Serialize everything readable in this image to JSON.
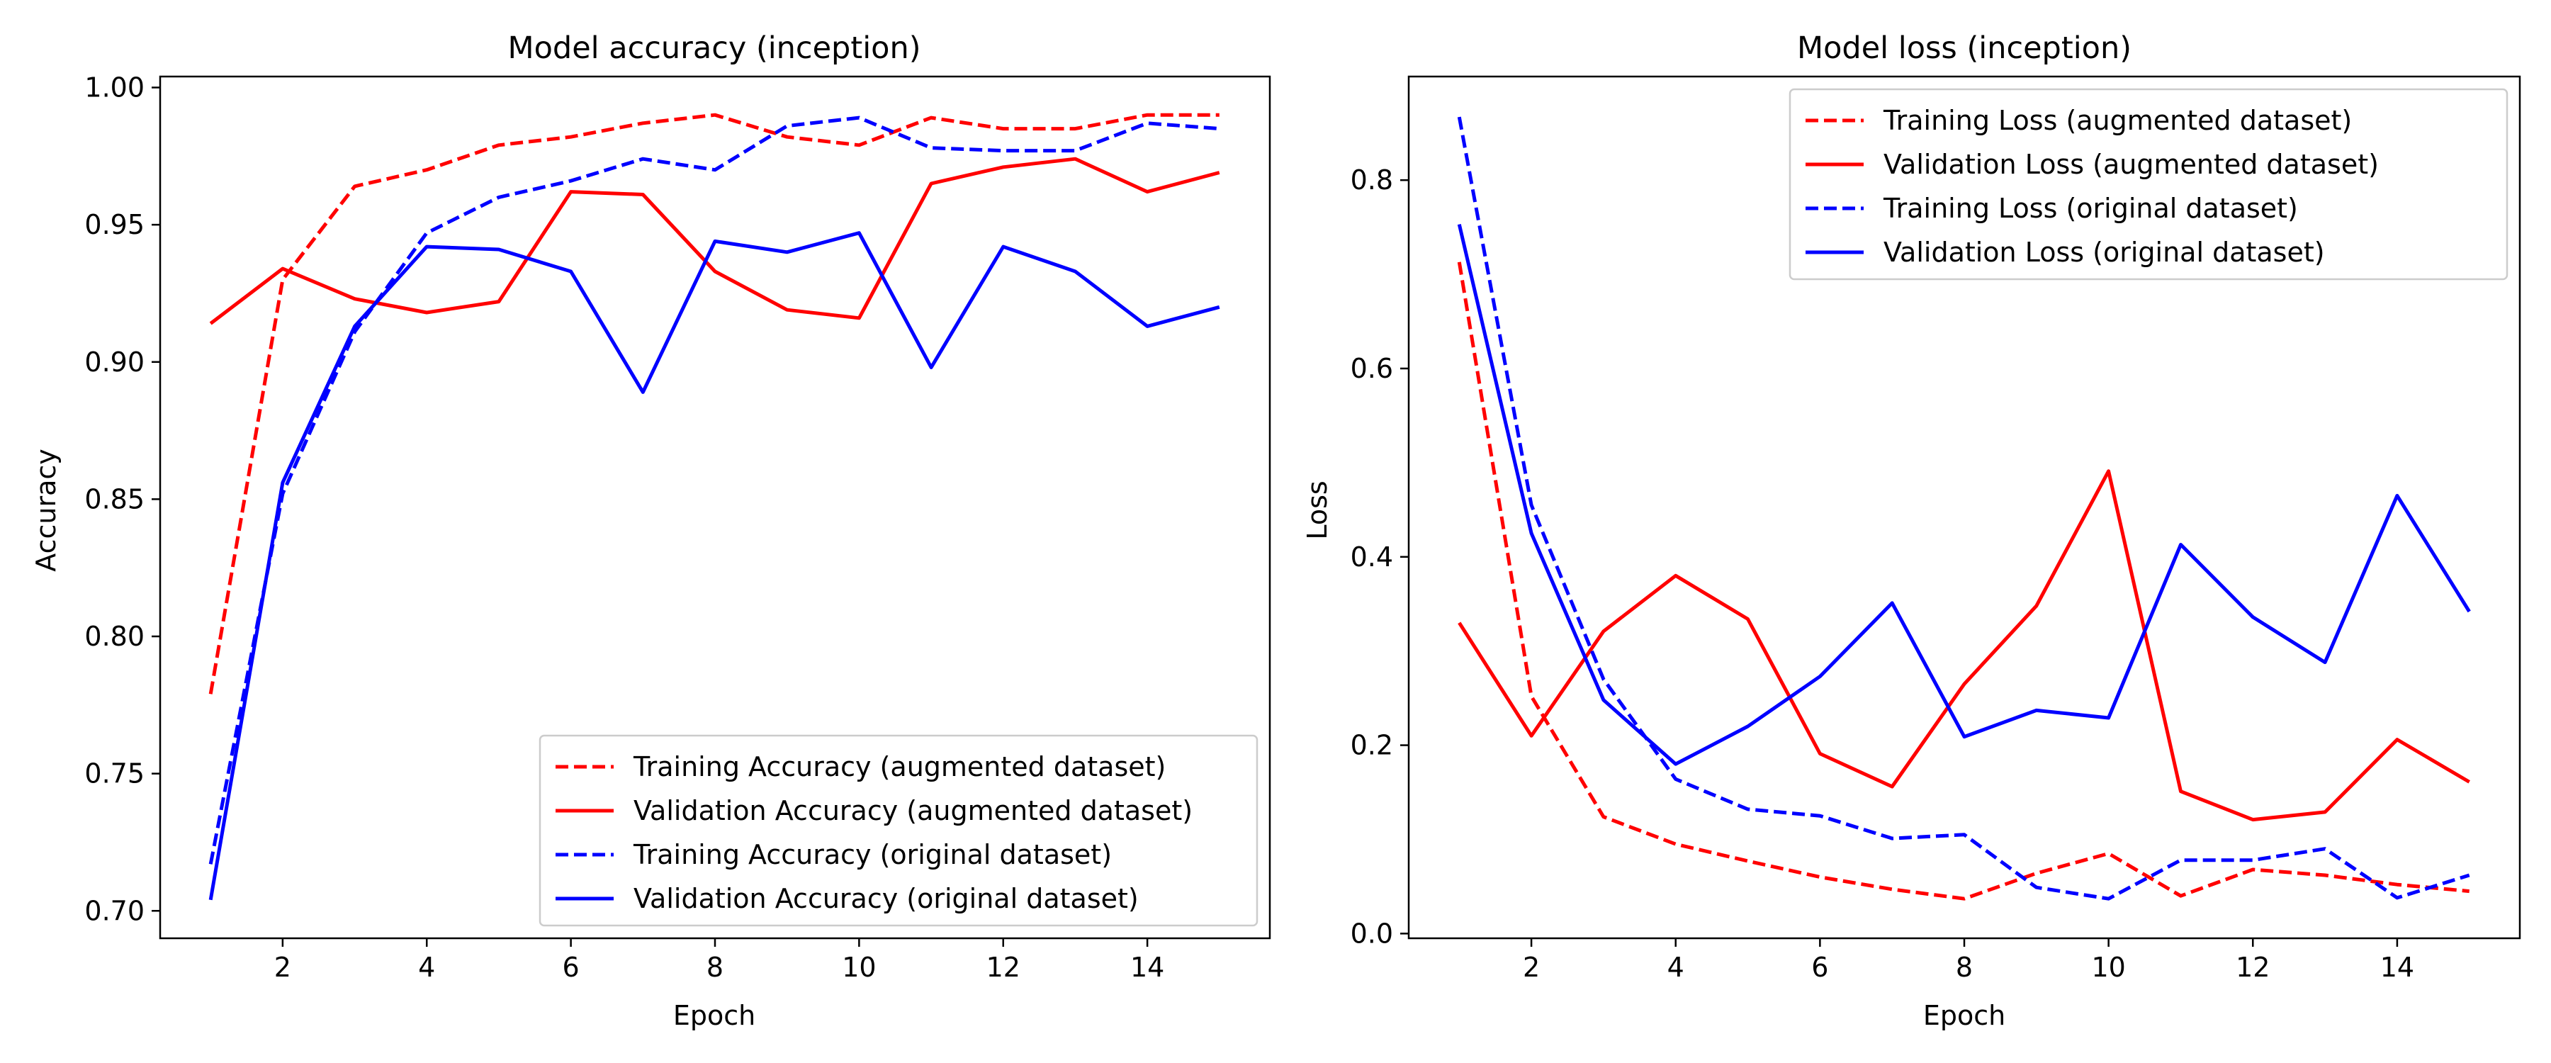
{
  "chart_data": [
    {
      "type": "line",
      "title": "Model accuracy (inception)",
      "xlabel": "Epoch",
      "ylabel": "Accuracy",
      "x": [
        1,
        2,
        3,
        4,
        5,
        6,
        7,
        8,
        9,
        10,
        11,
        12,
        13,
        14,
        15
      ],
      "xlim": [
        0.3,
        15.7
      ],
      "ylim": [
        0.69,
        1.004
      ],
      "xticks": [
        2,
        4,
        6,
        8,
        10,
        12,
        14
      ],
      "xtick_labels": [
        "2",
        "4",
        "6",
        "8",
        "10",
        "12",
        "14"
      ],
      "yticks": [
        0.7,
        0.75,
        0.8,
        0.85,
        0.9,
        0.95,
        1.0
      ],
      "ytick_labels": [
        "0.70",
        "0.75",
        "0.80",
        "0.85",
        "0.90",
        "0.95",
        "1.00"
      ],
      "grid": false,
      "legend_position": "lower-right",
      "series": [
        {
          "name": "Training Accuracy (augmented dataset)",
          "color": "#ff0000",
          "style": "dashed",
          "values": [
            0.779,
            0.93,
            0.964,
            0.97,
            0.979,
            0.982,
            0.987,
            0.99,
            0.982,
            0.979,
            0.989,
            0.985,
            0.985,
            0.99,
            0.99
          ]
        },
        {
          "name": "Validation Accuracy (augmented dataset)",
          "color": "#ff0000",
          "style": "solid",
          "values": [
            0.914,
            0.934,
            0.923,
            0.918,
            0.922,
            0.962,
            0.961,
            0.933,
            0.919,
            0.916,
            0.965,
            0.971,
            0.974,
            0.962,
            0.969
          ]
        },
        {
          "name": "Training Accuracy (original dataset)",
          "color": "#0000ff",
          "style": "dashed",
          "values": [
            0.717,
            0.852,
            0.911,
            0.947,
            0.96,
            0.966,
            0.974,
            0.97,
            0.986,
            0.989,
            0.978,
            0.977,
            0.977,
            0.987,
            0.985
          ]
        },
        {
          "name": "Validation Accuracy (original dataset)",
          "color": "#0000ff",
          "style": "solid",
          "values": [
            0.704,
            0.856,
            0.913,
            0.942,
            0.941,
            0.933,
            0.889,
            0.944,
            0.94,
            0.947,
            0.898,
            0.942,
            0.933,
            0.913,
            0.92
          ]
        }
      ]
    },
    {
      "type": "line",
      "title": "Model loss (inception)",
      "xlabel": "Epoch",
      "ylabel": "Loss",
      "x": [
        1,
        2,
        3,
        4,
        5,
        6,
        7,
        8,
        9,
        10,
        11,
        12,
        13,
        14,
        15
      ],
      "xlim": [
        0.3,
        15.7
      ],
      "ylim": [
        -0.005,
        0.91
      ],
      "xticks": [
        2,
        4,
        6,
        8,
        10,
        12,
        14
      ],
      "xtick_labels": [
        "2",
        "4",
        "6",
        "8",
        "10",
        "12",
        "14"
      ],
      "yticks": [
        0.0,
        0.2,
        0.4,
        0.6,
        0.8
      ],
      "ytick_labels": [
        "0.0",
        "0.2",
        "0.4",
        "0.6",
        "0.8"
      ],
      "grid": false,
      "legend_position": "upper-right",
      "series": [
        {
          "name": "Training Loss (augmented dataset)",
          "color": "#ff0000",
          "style": "dashed",
          "values": [
            0.713,
            0.252,
            0.124,
            0.095,
            0.077,
            0.06,
            0.047,
            0.037,
            0.064,
            0.085,
            0.04,
            0.068,
            0.062,
            0.052,
            0.045
          ]
        },
        {
          "name": "Validation Loss (augmented dataset)",
          "color": "#ff0000",
          "style": "solid",
          "values": [
            0.33,
            0.21,
            0.321,
            0.38,
            0.334,
            0.191,
            0.156,
            0.265,
            0.348,
            0.491,
            0.151,
            0.121,
            0.129,
            0.206,
            0.161
          ]
        },
        {
          "name": "Training Loss (original dataset)",
          "color": "#0000ff",
          "style": "dashed",
          "values": [
            0.867,
            0.455,
            0.27,
            0.164,
            0.132,
            0.125,
            0.101,
            0.105,
            0.049,
            0.037,
            0.078,
            0.078,
            0.09,
            0.038,
            0.062
          ]
        },
        {
          "name": "Validation Loss (original dataset)",
          "color": "#0000ff",
          "style": "solid",
          "values": [
            0.753,
            0.425,
            0.248,
            0.18,
            0.22,
            0.273,
            0.351,
            0.209,
            0.237,
            0.229,
            0.413,
            0.336,
            0.288,
            0.465,
            0.342
          ]
        }
      ]
    }
  ]
}
